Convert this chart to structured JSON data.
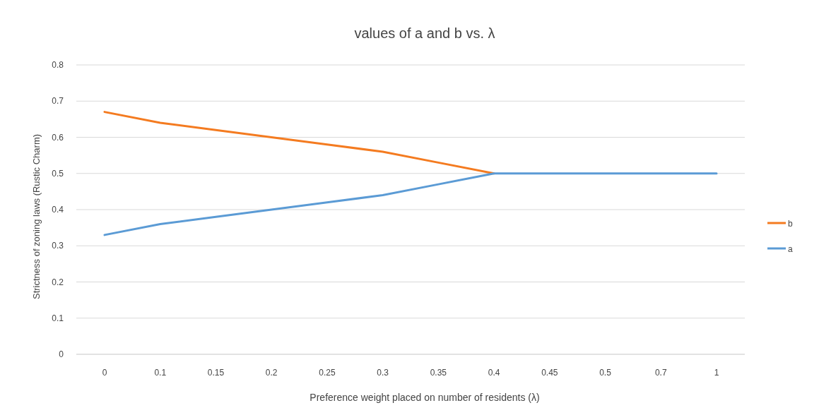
{
  "chart_data": {
    "type": "line",
    "title": "values of a and b vs. λ",
    "xlabel": "Preference  weight placed on number of residents (λ)",
    "ylabel": "Strictness of zoning laws (Rustic Charm)",
    "categories": [
      "0",
      "0.1",
      "0.15",
      "0.2",
      "0.25",
      "0.3",
      "0.35",
      "0.4",
      "0.45",
      "0.5",
      "0.7",
      "1"
    ],
    "series": [
      {
        "name": "b",
        "color": "#f47b20",
        "values": [
          0.67,
          0.64,
          0.62,
          0.6,
          0.58,
          0.56,
          0.53,
          0.5,
          null,
          null,
          null,
          null
        ]
      },
      {
        "name": "a",
        "color": "#5b9bd5",
        "values": [
          0.33,
          0.36,
          0.38,
          0.4,
          0.42,
          0.44,
          0.47,
          0.5,
          0.5,
          0.5,
          0.5,
          0.5
        ]
      }
    ],
    "ylim": [
      0,
      0.8
    ],
    "yticks": [
      0,
      0.1,
      0.2,
      0.3,
      0.4,
      0.5,
      0.6,
      0.7,
      0.8
    ],
    "grid": "y",
    "legend": "right",
    "marker": "none",
    "line_style": "solid"
  }
}
